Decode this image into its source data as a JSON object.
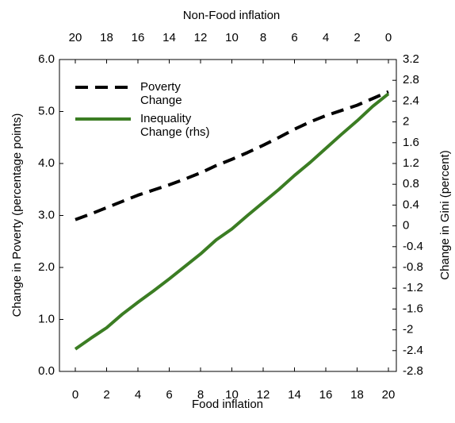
{
  "chart_data": {
    "type": "line",
    "xlabel": "Food inflation",
    "x2label": "Non-Food inflation",
    "ylabel": "Change in Poverty (percentage points)",
    "y2label": "Change in Gini (percent)",
    "x": [
      0,
      1,
      2,
      3,
      4,
      5,
      6,
      7,
      8,
      9,
      10,
      11,
      12,
      13,
      14,
      15,
      16,
      17,
      18,
      19,
      20
    ],
    "xlim": [
      0,
      20
    ],
    "xticks": [
      0,
      2,
      4,
      6,
      8,
      10,
      12,
      14,
      16,
      18,
      20
    ],
    "x2lim": [
      20,
      0
    ],
    "x2ticks": [
      20,
      18,
      16,
      14,
      12,
      10,
      8,
      6,
      4,
      2,
      0
    ],
    "ylim": [
      0,
      6
    ],
    "yticks": [
      {
        "value": 0,
        "label": "0.0"
      },
      {
        "value": 1,
        "label": "1.0"
      },
      {
        "value": 2,
        "label": "2.0"
      },
      {
        "value": 3,
        "label": "3.0"
      },
      {
        "value": 4,
        "label": "4.0"
      },
      {
        "value": 5,
        "label": "5.0"
      },
      {
        "value": 6,
        "label": "6.0"
      }
    ],
    "y2lim": [
      -2.8,
      3.2
    ],
    "y2ticks": [
      3.2,
      2.8,
      2.4,
      2,
      1.6,
      1.2,
      0.8,
      0.4,
      0,
      -0.4,
      -0.8,
      -1.2,
      -1.6,
      -2,
      -2.4,
      -2.8
    ],
    "legend": "upper left",
    "series": [
      {
        "name": "Poverty Change",
        "color": "#000000",
        "dashed": true,
        "axis": "y",
        "values": [
          2.92,
          3.03,
          3.15,
          3.27,
          3.39,
          3.49,
          3.59,
          3.7,
          3.82,
          3.96,
          4.08,
          4.21,
          4.35,
          4.5,
          4.66,
          4.8,
          4.92,
          5.02,
          5.12,
          5.25,
          5.38
        ]
      },
      {
        "name": "Inequality Change (rhs)",
        "color": "#3b7d23",
        "dashed": false,
        "axis": "y2",
        "values": [
          -2.37,
          -2.16,
          -1.96,
          -1.7,
          -1.47,
          -1.25,
          -1.02,
          -0.78,
          -0.54,
          -0.27,
          -0.06,
          0.2,
          0.45,
          0.7,
          0.97,
          1.22,
          1.49,
          1.76,
          2.02,
          2.3,
          2.54
        ]
      }
    ]
  }
}
